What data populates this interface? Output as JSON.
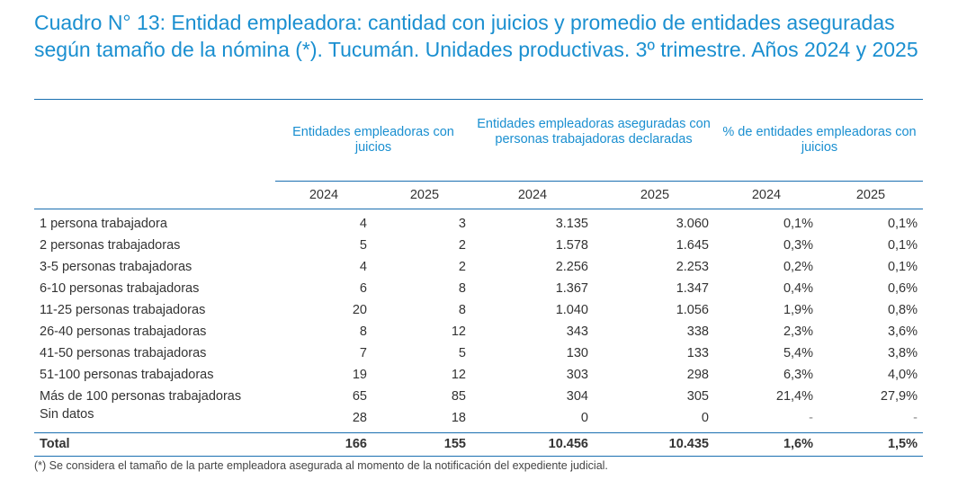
{
  "title": "Cuadro N° 13: Entidad empleadora: cantidad con juicios y promedio de entidades aseguradas según tamaño de la nómina (*).  Tucumán.  Unidades productivas.  3º trimestre. Años 2024 y 2025",
  "headers": {
    "group1": "Entidades empleadoras con juicios",
    "group2": "Entidades empleadoras aseguradas con personas trabajadoras declaradas",
    "group3": "% de entidades empleadoras con juicios",
    "years": [
      "2024",
      "2025",
      "2024",
      "2025",
      "2024",
      "2025"
    ]
  },
  "rows": [
    {
      "label": "1 persona trabajadora",
      "v": [
        "4",
        "3",
        "3.135",
        "3.060",
        "0,1%",
        "0,1%"
      ]
    },
    {
      "label": "2 personas trabajadoras",
      "v": [
        "5",
        "2",
        "1.578",
        "1.645",
        "0,3%",
        "0,1%"
      ]
    },
    {
      "label": "3-5 personas trabajadoras",
      "v": [
        "4",
        "2",
        "2.256",
        "2.253",
        "0,2%",
        "0,1%"
      ]
    },
    {
      "label": "6-10 personas trabajadoras",
      "v": [
        "6",
        "8",
        "1.367",
        "1.347",
        "0,4%",
        "0,6%"
      ]
    },
    {
      "label": "11-25 personas trabajadoras",
      "v": [
        "20",
        "8",
        "1.040",
        "1.056",
        "1,9%",
        "0,8%"
      ]
    },
    {
      "label": "26-40 personas trabajadoras",
      "v": [
        "8",
        "12",
        "343",
        "338",
        "2,3%",
        "3,6%"
      ]
    },
    {
      "label": "41-50 personas trabajadoras",
      "v": [
        "7",
        "5",
        "130",
        "133",
        "5,4%",
        "3,8%"
      ]
    },
    {
      "label": "51-100 personas trabajadoras",
      "v": [
        "19",
        "12",
        "303",
        "298",
        "6,3%",
        "4,0%"
      ]
    },
    {
      "label": "Más de 100 personas trabajadoras",
      "v": [
        "65",
        "85",
        "304",
        "305",
        "21,4%",
        "27,9%"
      ]
    },
    {
      "label": "Sin datos",
      "v": [
        "28",
        "18",
        "0",
        "0",
        "-",
        "-"
      ]
    }
  ],
  "total": {
    "label": "Total",
    "v": [
      "166",
      "155",
      "10.456",
      "10.435",
      "1,6%",
      "1,5%"
    ]
  },
  "note": "(*) Se considera el tamaño de la parte empleadora asegurada al momento de la notificación del expediente judicial."
}
